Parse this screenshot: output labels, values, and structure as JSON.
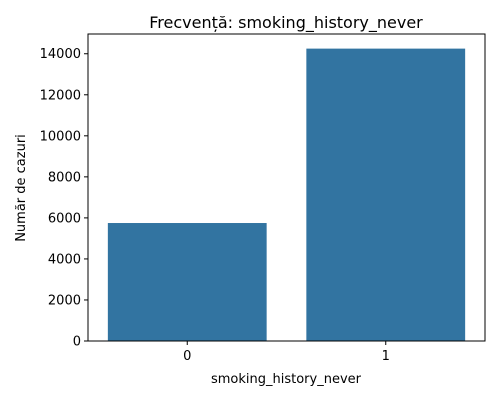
{
  "chart_data": {
    "type": "bar",
    "title": "Frecvență: smoking_history_never",
    "xlabel": "smoking_history_never",
    "ylabel": "Număr de cazuri",
    "categories": [
      "0",
      "1"
    ],
    "values": [
      5750,
      14250
    ],
    "ylim": [
      0,
      14962.5
    ],
    "yticks": [
      0,
      2000,
      4000,
      6000,
      8000,
      10000,
      12000,
      14000
    ],
    "grid": false,
    "bar_color": "#3274a1"
  }
}
